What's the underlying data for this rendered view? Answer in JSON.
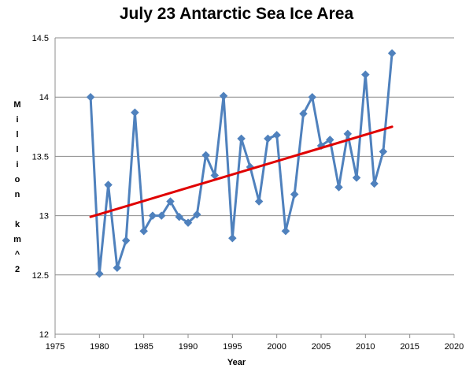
{
  "chart_data": {
    "type": "line",
    "title": "July 23 Antarctic Sea Ice Area",
    "xlabel": "Year",
    "ylabel": "Million km^2",
    "xlim": [
      1975,
      2020
    ],
    "ylim": [
      12,
      14.5
    ],
    "xticks": [
      1975,
      1980,
      1985,
      1990,
      1995,
      2000,
      2005,
      2010,
      2015,
      2020
    ],
    "yticks": [
      12,
      12.5,
      13,
      13.5,
      14,
      14.5
    ],
    "grid": "horizontal",
    "legend": "none",
    "colors": {
      "series": "#4F81BD",
      "marker": "#4F81BD",
      "trend": "#E00000"
    },
    "series": [
      {
        "x": [
          1979,
          1980,
          1981,
          1982,
          1983,
          1984,
          1985,
          1986,
          1987,
          1988,
          1989,
          1990,
          1991,
          1992,
          1993,
          1994,
          1995,
          1996,
          1997,
          1998,
          1999,
          2000,
          2001,
          2002,
          2003,
          2004,
          2005,
          2006,
          2007,
          2008,
          2009,
          2010,
          2011,
          2012,
          2013
        ],
        "values": [
          14.0,
          12.51,
          13.26,
          12.56,
          12.79,
          13.87,
          12.87,
          13.0,
          13.0,
          13.12,
          12.99,
          12.94,
          13.01,
          13.51,
          13.34,
          14.01,
          12.81,
          13.65,
          13.41,
          13.12,
          13.65,
          13.68,
          12.87,
          13.18,
          13.86,
          14.0,
          13.59,
          13.64,
          13.24,
          13.69,
          13.32,
          14.19,
          13.27,
          13.54,
          14.37
        ]
      }
    ],
    "trendline": {
      "x": [
        1979,
        2013
      ],
      "values": [
        12.99,
        13.75
      ]
    }
  }
}
